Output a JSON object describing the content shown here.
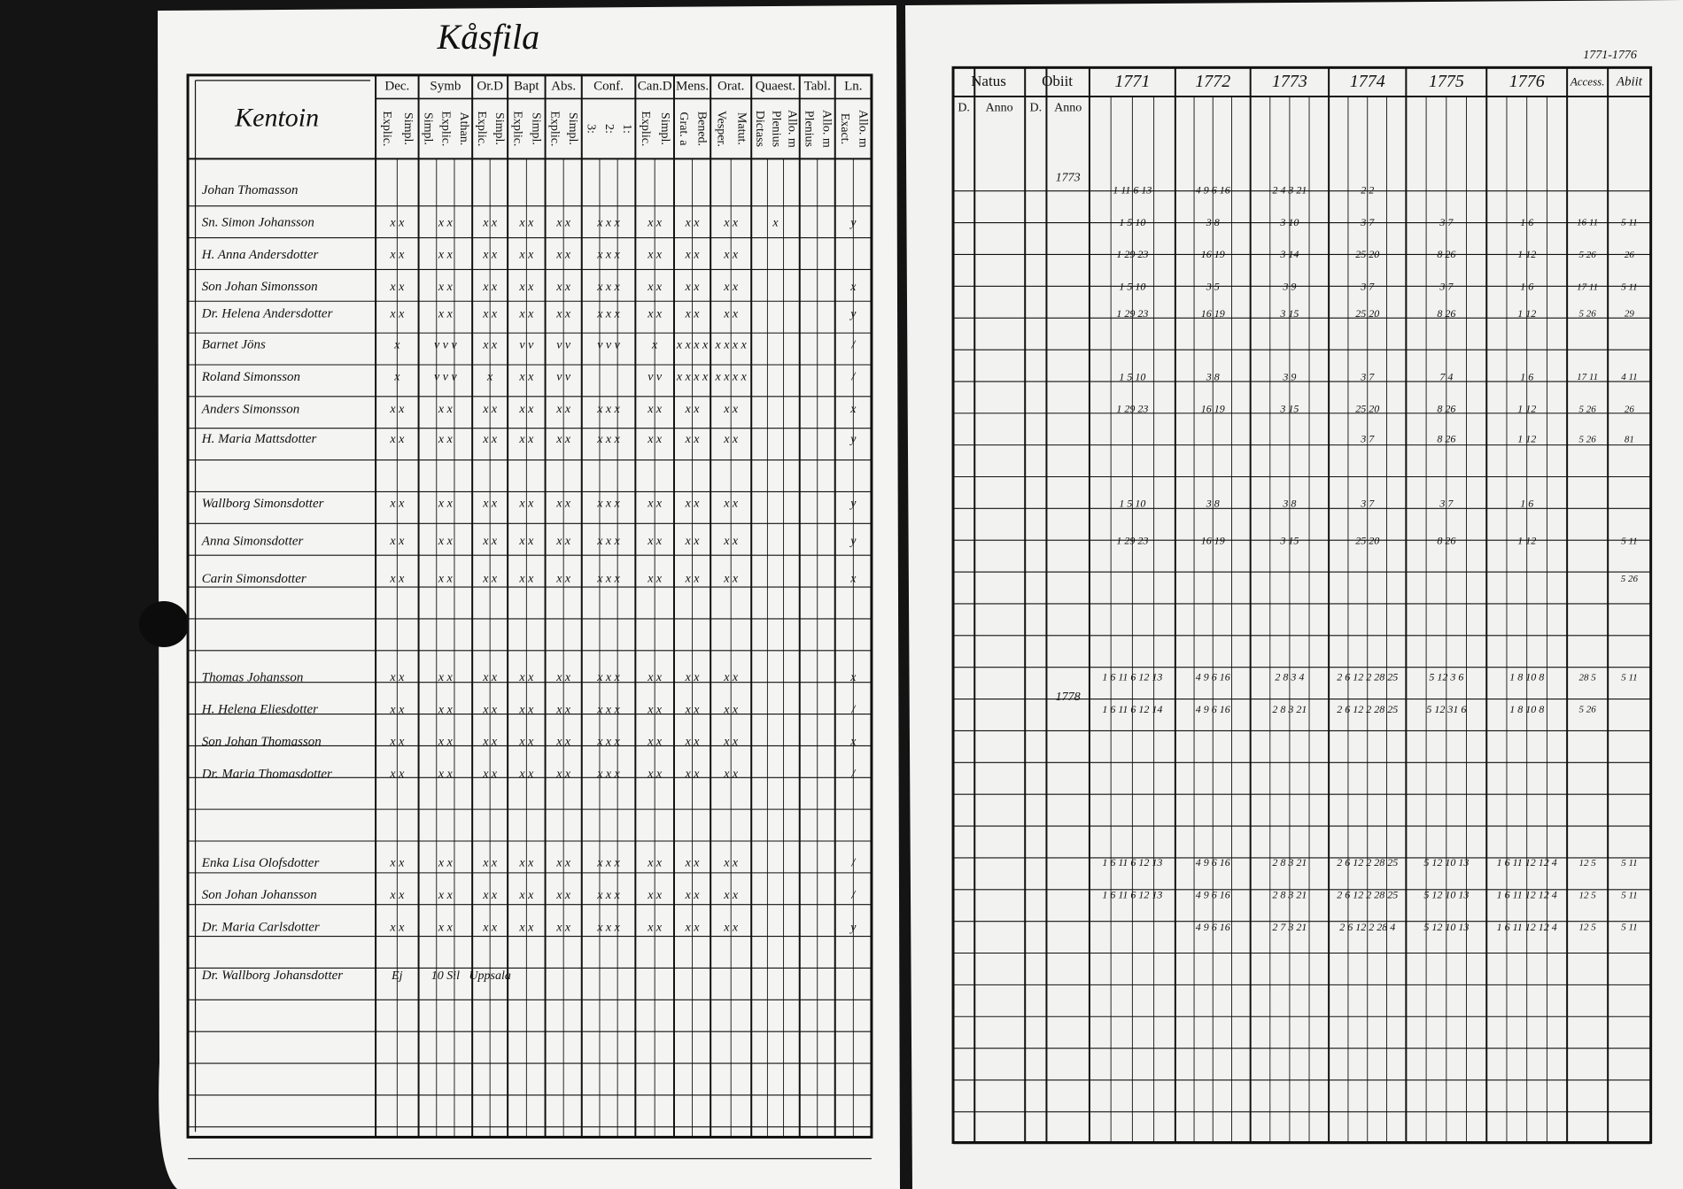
{
  "left_page": {
    "title": "Kåsfila",
    "village": "Kentoin",
    "columns": [
      {
        "label": "Dec.",
        "sub": [
          "Explic.",
          "Simpl."
        ]
      },
      {
        "label": "Symb",
        "sub": [
          "Simpl.",
          "Explic.",
          "Athan."
        ]
      },
      {
        "label": "Or.D",
        "sub": [
          "Explic.",
          "Simpl."
        ]
      },
      {
        "label": "Bapt",
        "sub": [
          "Explic.",
          "Simpl."
        ]
      },
      {
        "label": "Abs.",
        "sub": [
          "Explic.",
          "Simpl."
        ]
      },
      {
        "label": "Conf.",
        "sub": [
          "3:",
          "2:",
          "1:"
        ]
      },
      {
        "label": "Can.D",
        "sub": [
          "Explic.",
          "Simpl."
        ]
      },
      {
        "label": "Mens.",
        "sub": [
          "Grat. a",
          "Bened."
        ]
      },
      {
        "label": "Orat.",
        "sub": [
          "Vesper.",
          "Matut."
        ]
      },
      {
        "label": "Quaest.",
        "sub": [
          "Dictass",
          "Plenius",
          "Allo. m"
        ]
      },
      {
        "label": "Tabl.",
        "sub": [
          "Plenius",
          "Allo. m"
        ]
      },
      {
        "label": "Ln.",
        "sub": [
          "Exact.",
          "Allo. m"
        ]
      }
    ]
  },
  "right_page": {
    "corner": "1771-1776",
    "natus": {
      "label": "Natus",
      "sub": [
        "D.",
        "Anno"
      ]
    },
    "obiit": {
      "label": "Obiit",
      "sub": [
        "D.",
        "Anno"
      ]
    },
    "years": [
      "1771",
      "1772",
      "1773",
      "1774",
      "1775",
      "1776"
    ],
    "accessit": "Access.",
    "abiit": "Abiit"
  },
  "rows": [
    {
      "name": "Johan Thomasson",
      "marks": [
        null,
        null,
        null,
        null,
        null,
        null,
        null,
        null,
        null,
        null,
        null,
        null
      ],
      "obiit": "1773",
      "years": [
        "1 11 6 13",
        "4 9 6 16",
        "2 4 3 21",
        "2 2",
        null,
        null
      ],
      "accessit": null,
      "abiit": null
    },
    {
      "name": "Sn. Simon Johansson",
      "marks": [
        "x x",
        "x x",
        "x x",
        "x x",
        "x x",
        "x x x",
        "x x",
        "x x",
        "x x",
        "x",
        null,
        "y"
      ],
      "obiit": null,
      "years": [
        "1 5 10",
        "3 8",
        "3 10",
        "3 7",
        "3 7",
        "1 6"
      ],
      "accessit": "16 11",
      "abiit": "5 11"
    },
    {
      "name": "H. Anna Andersdotter",
      "marks": [
        "x x",
        "x x",
        "x x",
        "x x",
        "x x",
        "x x x",
        "x x",
        "x x",
        "x x",
        null,
        null,
        null
      ],
      "obiit": null,
      "years": [
        "1 29 23",
        "16 19",
        "3 14",
        "25 20",
        "8 26",
        "1 12"
      ],
      "accessit": "5 26",
      "abiit": "26"
    },
    {
      "name": "Son Johan Simonsson",
      "marks": [
        "x x",
        "x x",
        "x x",
        "x x",
        "x x",
        "x x x",
        "x x",
        "x x",
        "x x",
        null,
        null,
        "x"
      ],
      "obiit": null,
      "years": [
        "1 5 10",
        "3 5",
        "3 9",
        "3 7",
        "3 7",
        "1 6"
      ],
      "accessit": "17 11",
      "abiit": "5 11"
    },
    {
      "name": "Dr. Helena Andersdotter",
      "marks": [
        "x x",
        "x x",
        "x x",
        "x x",
        "x x",
        "x x x",
        "x x",
        "x x",
        "x x",
        null,
        null,
        "y"
      ],
      "obiit": null,
      "years": [
        "1 29 23",
        "16 19",
        "3 15",
        "25 20",
        "8 26",
        "1 12"
      ],
      "accessit": "5 26",
      "abiit": "29"
    },
    {
      "name": "Barnet Jöns",
      "marks": [
        "x",
        "v v v",
        "x x",
        "v v",
        "v v",
        "v v v",
        "x",
        "x x x x",
        "x x x x",
        null,
        null,
        "/"
      ],
      "obiit": null,
      "years": [
        null,
        null,
        null,
        null,
        null,
        null
      ],
      "accessit": null,
      "abiit": null
    },
    {
      "name": "Roland Simonsson",
      "marks": [
        "x",
        "v v v",
        "x",
        "x x",
        "v v",
        null,
        "v v",
        "x x x x",
        "x x x x",
        null,
        null,
        "/"
      ],
      "obiit": null,
      "years": [
        "1 5 10",
        "3 8",
        "3 9",
        "3 7",
        "7 4",
        "1 6"
      ],
      "accessit": "17 11",
      "abiit": "4 11"
    },
    {
      "name": "Anders Simonsson",
      "marks": [
        "x x",
        "x x",
        "x x",
        "x x",
        "x x",
        "x x x",
        "x x",
        "x x",
        "x x",
        null,
        null,
        "x"
      ],
      "obiit": null,
      "years": [
        "1 29 23",
        "16 19",
        "3 15",
        "25 20",
        "8 26",
        "1 12"
      ],
      "accessit": "5 26",
      "abiit": "26"
    },
    {
      "name": "H. Maria Mattsdotter",
      "marks": [
        "x x",
        "x x",
        "x x",
        "x x",
        "x x",
        "x x x",
        "x x",
        "x x",
        "x x",
        null,
        null,
        "y"
      ],
      "obiit": null,
      "years": [
        null,
        null,
        null,
        "3 7",
        "8 26",
        "1 12"
      ],
      "accessit": "5 26",
      "abiit": "81"
    },
    {
      "name": "Wallborg Simonsdotter",
      "marks": [
        "x x",
        "x x",
        "x x",
        "x x",
        "x x",
        "x x x",
        "x x",
        "x x",
        "x x",
        null,
        null,
        "y"
      ],
      "obiit": null,
      "years": [
        "1 5 10",
        "3 8",
        "3 8",
        "3 7",
        "3 7",
        "1 6"
      ],
      "accessit": null,
      "abiit": null
    },
    {
      "name": "Anna Simonsdotter",
      "marks": [
        "x x",
        "x x",
        "x x",
        "x x",
        "x x",
        "x x x",
        "x x",
        "x x",
        "x x",
        null,
        null,
        "y"
      ],
      "obiit": null,
      "years": [
        "1 29 23",
        "16 19",
        "3 15",
        "25 20",
        "8 26",
        "1 12"
      ],
      "accessit": null,
      "abiit": "5 11"
    },
    {
      "name": "Carin Simonsdotter",
      "marks": [
        "x x",
        "x x",
        "x x",
        "x x",
        "x x",
        "x x x",
        "x x",
        "x x",
        "x x",
        null,
        null,
        "x"
      ],
      "obiit": null,
      "years": [
        null,
        null,
        null,
        null,
        null,
        null
      ],
      "accessit": null,
      "abiit": "5 26"
    },
    {
      "name": "Thomas Johansson",
      "marks": [
        "x x",
        "x x",
        "x x",
        "x x",
        "x x",
        "x x x",
        "x x",
        "x x",
        "x x",
        null,
        null,
        "x"
      ],
      "obiit": null,
      "years": [
        "1 6 11 6 12 13",
        "4 9 6 16",
        "2 8 3 4",
        "2 6 12 2 28 25",
        "5 12 3 6",
        "1 8 10 8"
      ],
      "accessit": "28 5",
      "abiit": "5 11"
    },
    {
      "name": "H. Helena Eliesdotter",
      "marks": [
        "x x",
        "x x",
        "x x",
        "x x",
        "x x",
        "x x x",
        "x x",
        "x x",
        "x x",
        null,
        null,
        "/"
      ],
      "obiit": "1778",
      "years": [
        "1 6 11 6 12 14",
        "4 9 6 16",
        "2 8 3 21",
        "2 6 12 2 28 25",
        "5 12 31 6",
        "1 8 10 8"
      ],
      "accessit": "5 26",
      "abiit": null
    },
    {
      "name": "Son Johan Thomasson",
      "marks": [
        "x x",
        "x x",
        "x x",
        "x x",
        "x x",
        "x x x",
        "x x",
        "x x",
        "x x",
        null,
        null,
        "x"
      ],
      "obiit": null,
      "years": [
        null,
        null,
        null,
        null,
        null,
        null
      ],
      "accessit": null,
      "abiit": null
    },
    {
      "name": "Dr. Maria Thomasdotter",
      "marks": [
        "x x",
        "x x",
        "x x",
        "x x",
        "x x",
        "x x x",
        "x x",
        "x x",
        "x x",
        null,
        null,
        "/"
      ],
      "obiit": null,
      "years": [
        null,
        null,
        null,
        null,
        null,
        null
      ],
      "accessit": null,
      "abiit": null
    },
    {
      "name": "Enka Lisa Olofsdotter",
      "marks": [
        "x x",
        "x x",
        "x x",
        "x x",
        "x x",
        "x x x",
        "x x",
        "x x",
        "x x",
        null,
        null,
        "/"
      ],
      "obiit": null,
      "years": [
        "1 6 11 6 12 13",
        "4 9 6 16",
        "2 8 3 21",
        "2 6 12 2 28 25",
        "5 12 10 13",
        "1 6 11 12 12 4"
      ],
      "accessit": "12 5",
      "abiit": "5 11"
    },
    {
      "name": "Son Johan Johansson",
      "marks": [
        "x x",
        "x x",
        "x x",
        "x x",
        "x x",
        "x x x",
        "x x",
        "x x",
        "x x",
        null,
        null,
        "/"
      ],
      "obiit": null,
      "years": [
        "1 6 11 6 12 13",
        "4 9 6 16",
        "2 8 3 21",
        "2 6 12 2 28 25",
        "5 12 10 13",
        "1 6 11 12 12 4"
      ],
      "accessit": "12 5",
      "abiit": "5 11"
    },
    {
      "name": "Dr. Maria Carlsdotter",
      "marks": [
        "x x",
        "x x",
        "x x",
        "x x",
        "x x",
        "x x x",
        "x x",
        "x x",
        "x x",
        null,
        null,
        "y"
      ],
      "obiit": null,
      "years": [
        null,
        "4 9 6 16",
        "2 7 3 21",
        "2 6 12 2 28 4",
        "5 12 10 13",
        "1 6 11 12 12 4"
      ],
      "accessit": "12 5",
      "abiit": "5 11"
    },
    {
      "name": "Dr. Wallborg Johansdotter",
      "marks": [
        "Ej",
        "10 Sil",
        "Uppsala",
        null,
        null,
        null,
        null,
        null,
        null,
        null,
        null,
        null
      ],
      "obiit": null,
      "years": [
        null,
        null,
        null,
        null,
        null,
        null
      ],
      "accessit": null,
      "abiit": null
    }
  ]
}
